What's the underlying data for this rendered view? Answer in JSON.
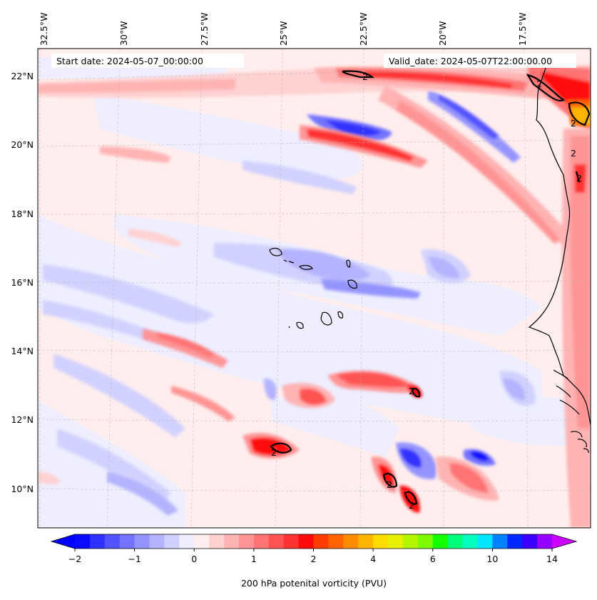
{
  "map": {
    "start_date": "Start date: 2024-05-07_00:00:00",
    "valid_date": "Valid_date: 2024-05-07T22:00:00.00",
    "lon_labels": [
      "32.5°W",
      "30°W",
      "27.5°W",
      "25°W",
      "22.5°W",
      "20°W",
      "17.5°W"
    ],
    "lat_labels": [
      "22°N",
      "20°N",
      "18°N",
      "16°N",
      "14°N",
      "12°N",
      "10°N"
    ],
    "contour_label": "2",
    "contour_level_pvu": 2
  },
  "colorbar": {
    "label": "200 hPa potenital vorticity (PVU)",
    "ticks": [
      "−2",
      "−1",
      "0",
      "1",
      "2",
      "4",
      "6",
      "10",
      "14"
    ],
    "colors": [
      "#0a0aff",
      "#3131ff",
      "#5252ff",
      "#7373ff",
      "#9494ff",
      "#b3b3ff",
      "#d1d1ff",
      "#eeeeff",
      "#ffeeee",
      "#ffd1d1",
      "#ffb3b3",
      "#ff9494",
      "#ff7373",
      "#ff5252",
      "#ff3131",
      "#ff0a0a",
      "#ff3c00",
      "#ff6400",
      "#ff8c00",
      "#ffb400",
      "#ffdc00",
      "#e6f000",
      "#b4f500",
      "#7dfa00",
      "#14ff00",
      "#00ff78",
      "#00ffbe",
      "#00e6ff",
      "#0082ff",
      "#0028ff",
      "#3c00ff",
      "#9600ff"
    ],
    "extend_low_color": "#0000ff",
    "extend_high_color": "#cc00ff"
  },
  "colors": {
    "background_field": "#ffeeee",
    "coastline": "#000000",
    "gridline": "#b0b0b0"
  }
}
